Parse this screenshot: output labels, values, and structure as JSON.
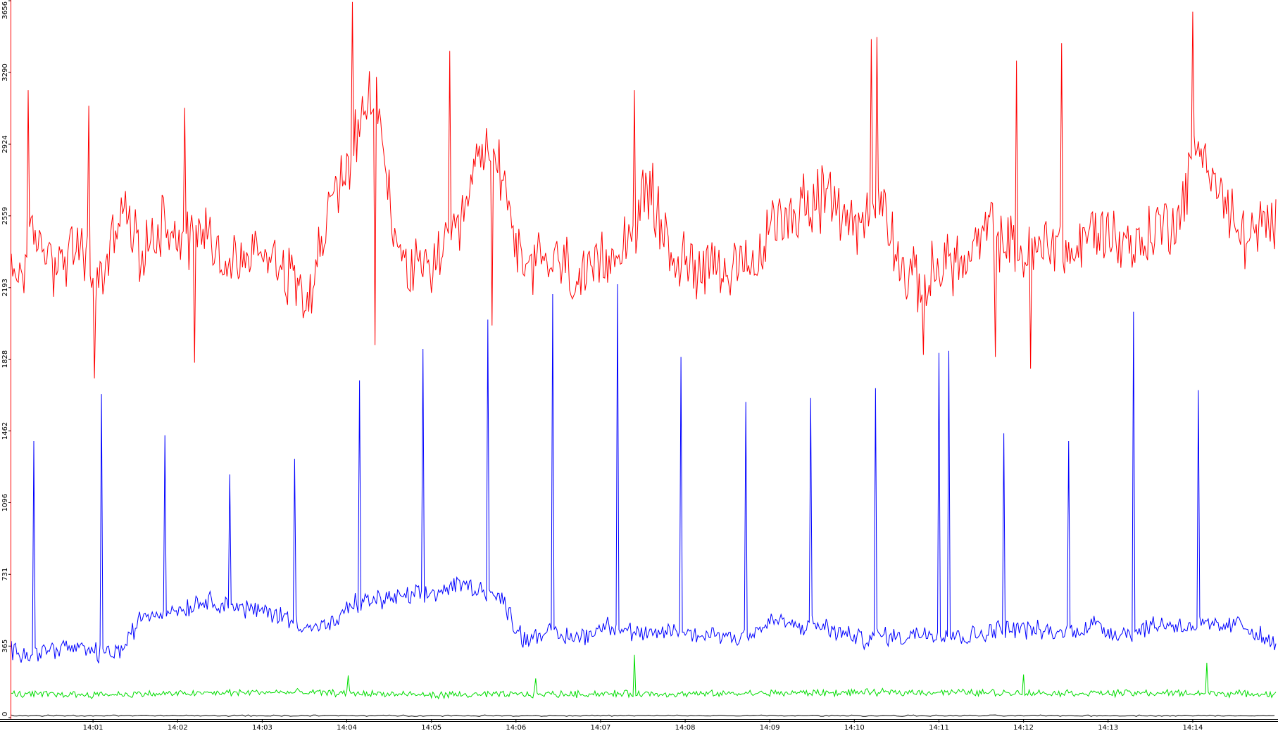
{
  "chart_data": {
    "type": "line",
    "title": "",
    "xlabel": "",
    "ylabel": "",
    "ylim": [
      0,
      3656
    ],
    "y_ticks": [
      "0",
      "365",
      "731",
      "1096",
      "1462",
      "1828",
      "2193",
      "2559",
      "2924",
      "3290",
      "3656"
    ],
    "x_ticks": [
      "14:01",
      "14:02",
      "14:03",
      "14:04",
      "14:05",
      "14:06",
      "14:07",
      "14:08",
      "14:09",
      "14:10",
      "14:11",
      "14:12",
      "14:13",
      "14:14"
    ],
    "x_range": [
      "14:00:02",
      "14:14:59"
    ],
    "grid": false,
    "legend": "none",
    "series": [
      {
        "color": "#ff0000",
        "baseline": 2450,
        "x": [
          "14:00:05",
          "14:00:20",
          "14:00:35",
          "14:00:50",
          "14:01:05",
          "14:01:20",
          "14:01:35",
          "14:01:50",
          "14:02:05",
          "14:02:20",
          "14:02:35",
          "14:02:50",
          "14:03:05",
          "14:03:20",
          "14:03:35",
          "14:03:50",
          "14:04:05",
          "14:04:20",
          "14:04:35",
          "14:04:50",
          "14:05:05",
          "14:05:20",
          "14:05:35",
          "14:05:50",
          "14:06:05",
          "14:06:20",
          "14:06:35",
          "14:06:50",
          "14:07:05",
          "14:07:20",
          "14:07:35",
          "14:07:50",
          "14:08:05",
          "14:08:20",
          "14:08:35",
          "14:08:50",
          "14:09:05",
          "14:09:20",
          "14:09:35",
          "14:09:50",
          "14:10:05",
          "14:10:20",
          "14:10:35",
          "14:10:50",
          "14:11:05",
          "14:11:20",
          "14:11:35",
          "14:11:50",
          "14:12:05",
          "14:12:20",
          "14:12:35",
          "14:12:50",
          "14:13:05",
          "14:13:20",
          "14:13:35",
          "14:13:50",
          "14:14:05",
          "14:14:20",
          "14:14:35",
          "14:14:55"
        ],
        "values": [
          2250,
          2450,
          2300,
          2400,
          2200,
          2600,
          2350,
          2550,
          2450,
          2500,
          2300,
          2350,
          2400,
          2250,
          2200,
          2650,
          2900,
          3200,
          2400,
          2250,
          2350,
          2450,
          2900,
          2800,
          2250,
          2350,
          2300,
          2200,
          2350,
          2450,
          2700,
          2350,
          2300,
          2350,
          2250,
          2300,
          2550,
          2600,
          2650,
          2600,
          2500,
          2650,
          2250,
          2200,
          2350,
          2300,
          2500,
          2400,
          2350,
          2450,
          2350,
          2500,
          2450,
          2400,
          2500,
          2550,
          2950,
          2650,
          2450,
          2500
        ],
        "spikes_max": [
          {
            "x": "14:00:14",
            "y": 3200
          },
          {
            "x": "14:00:57",
            "y": 3120
          },
          {
            "x": "14:02:05",
            "y": 3110
          },
          {
            "x": "14:04:04",
            "y": 3650
          },
          {
            "x": "14:05:13",
            "y": 3400
          },
          {
            "x": "14:07:24",
            "y": 3200
          },
          {
            "x": "14:10:12",
            "y": 3460
          },
          {
            "x": "14:10:16",
            "y": 3470
          },
          {
            "x": "14:11:55",
            "y": 3350
          },
          {
            "x": "14:12:27",
            "y": 3440
          },
          {
            "x": "14:14:00",
            "y": 3600
          }
        ],
        "spikes_min": [
          {
            "x": "14:01:01",
            "y": 1730
          },
          {
            "x": "14:02:12",
            "y": 1810
          },
          {
            "x": "14:04:20",
            "y": 1900
          },
          {
            "x": "14:05:43",
            "y": 2000
          },
          {
            "x": "14:10:49",
            "y": 1850
          },
          {
            "x": "14:11:40",
            "y": 1840
          },
          {
            "x": "14:12:05",
            "y": 1780
          }
        ]
      },
      {
        "color": "#0000ff",
        "baseline": 380,
        "x": [
          "14:00:05",
          "14:00:20",
          "14:00:35",
          "14:00:50",
          "14:01:05",
          "14:01:20",
          "14:01:35",
          "14:01:50",
          "14:02:05",
          "14:02:20",
          "14:02:35",
          "14:02:50",
          "14:03:05",
          "14:03:20",
          "14:03:35",
          "14:03:50",
          "14:04:05",
          "14:04:20",
          "14:04:35",
          "14:04:50",
          "14:05:05",
          "14:05:20",
          "14:05:35",
          "14:05:50",
          "14:06:05",
          "14:06:20",
          "14:06:35",
          "14:06:50",
          "14:07:05",
          "14:07:20",
          "14:07:35",
          "14:07:50",
          "14:08:05",
          "14:08:20",
          "14:08:35",
          "14:08:50",
          "14:09:05",
          "14:09:20",
          "14:09:35",
          "14:09:50",
          "14:10:05",
          "14:10:20",
          "14:10:35",
          "14:10:50",
          "14:11:05",
          "14:11:20",
          "14:11:35",
          "14:11:50",
          "14:12:05",
          "14:12:20",
          "14:12:35",
          "14:12:50",
          "14:13:05",
          "14:13:20",
          "14:13:35",
          "14:13:50",
          "14:14:05",
          "14:14:20",
          "14:14:35",
          "14:14:55"
        ],
        "values": [
          340,
          330,
          360,
          350,
          330,
          340,
          520,
          540,
          560,
          600,
          580,
          550,
          540,
          500,
          460,
          470,
          580,
          600,
          610,
          620,
          640,
          680,
          660,
          600,
          400,
          440,
          410,
          420,
          480,
          440,
          410,
          450,
          420,
          430,
          410,
          440,
          500,
          460,
          470,
          430,
          400,
          420,
          410,
          440,
          430,
          410,
          440,
          460,
          450,
          430,
          440,
          480,
          430,
          440,
          480,
          470,
          470,
          460,
          480,
          380
        ],
        "spikes": [
          {
            "x": "14:00:18",
            "y": 1410
          },
          {
            "x": "14:01:06",
            "y": 1650
          },
          {
            "x": "14:01:51",
            "y": 1440
          },
          {
            "x": "14:02:37",
            "y": 1240
          },
          {
            "x": "14:03:23",
            "y": 1320
          },
          {
            "x": "14:04:09",
            "y": 1720
          },
          {
            "x": "14:04:54",
            "y": 1880
          },
          {
            "x": "14:05:40",
            "y": 2030
          },
          {
            "x": "14:06:26",
            "y": 2160
          },
          {
            "x": "14:07:12",
            "y": 2210
          },
          {
            "x": "14:07:57",
            "y": 1840
          },
          {
            "x": "14:08:43",
            "y": 1610
          },
          {
            "x": "14:09:29",
            "y": 1630
          },
          {
            "x": "14:10:15",
            "y": 1680
          },
          {
            "x": "14:11:00",
            "y": 1860
          },
          {
            "x": "14:11:07",
            "y": 1870
          },
          {
            "x": "14:11:46",
            "y": 1450
          },
          {
            "x": "14:12:32",
            "y": 1410
          },
          {
            "x": "14:13:18",
            "y": 2070
          },
          {
            "x": "14:14:04",
            "y": 1670
          }
        ]
      },
      {
        "color": "#00dd00",
        "baseline": 125,
        "x": [
          "14:00:05",
          "14:01:00",
          "14:02:00",
          "14:03:00",
          "14:04:00",
          "14:05:00",
          "14:06:00",
          "14:07:00",
          "14:08:00",
          "14:09:00",
          "14:10:00",
          "14:11:00",
          "14:12:00",
          "14:13:00",
          "14:14:00",
          "14:14:55"
        ],
        "values": [
          120,
          118,
          122,
          130,
          125,
          115,
          118,
          122,
          120,
          125,
          128,
          130,
          126,
          125,
          125,
          120
        ],
        "spikes": [
          {
            "x": "14:04:01",
            "y": 215
          },
          {
            "x": "14:06:14",
            "y": 200
          },
          {
            "x": "14:07:24",
            "y": 320
          },
          {
            "x": "14:12:00",
            "y": 220
          },
          {
            "x": "14:14:10",
            "y": 280
          }
        ]
      },
      {
        "color": "#000000",
        "baseline": 10,
        "x": [
          "14:00:05",
          "14:14:55"
        ],
        "values": [
          10,
          10
        ],
        "spikes": []
      }
    ]
  }
}
